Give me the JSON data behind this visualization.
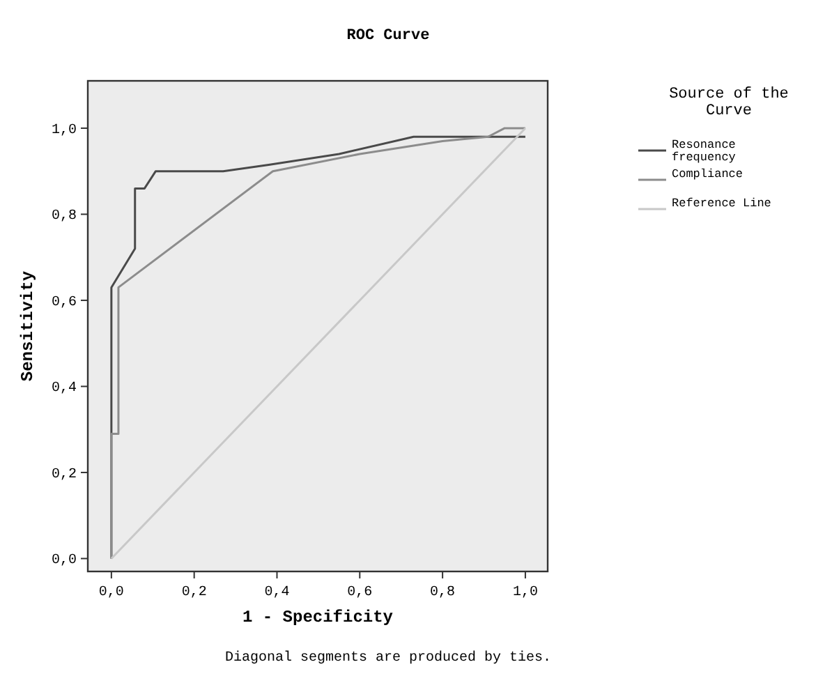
{
  "chart_data": {
    "type": "line",
    "title": "ROC Curve",
    "xlabel": "1 - Specificity",
    "ylabel": "Sensitivity",
    "legend_title": "Source of the Curve",
    "legend": "right",
    "grid": false,
    "marker": "none",
    "annotations": [
      "Diagonal segments are produced by ties."
    ],
    "xlim": [
      -0.057,
      1.054
    ],
    "ylim": [
      -0.03,
      1.11
    ],
    "xticks": [
      {
        "value": 0,
        "label": "0,0"
      },
      {
        "value": 0.2,
        "label": "0,2"
      },
      {
        "value": 0.4,
        "label": "0,4"
      },
      {
        "value": 0.6,
        "label": "0,6"
      },
      {
        "value": 0.8,
        "label": "0,8"
      },
      {
        "value": 1,
        "label": "1,0"
      }
    ],
    "yticks": [
      {
        "value": 0,
        "label": "0,0"
      },
      {
        "value": 0.2,
        "label": "0,2"
      },
      {
        "value": 0.4,
        "label": "0,4"
      },
      {
        "value": 0.6,
        "label": "0,6"
      },
      {
        "value": 0.8,
        "label": "0,8"
      },
      {
        "value": 1,
        "label": "1,0"
      }
    ],
    "series": [
      {
        "name": "Resonance frequency",
        "color": "#4a4a4a",
        "x": [
          0,
          0,
          0.057,
          0.057,
          0.08,
          0.107,
          0.27,
          0.38,
          0.55,
          0.73,
          0.86,
          1
        ],
        "values": [
          0,
          0.63,
          0.72,
          0.86,
          0.86,
          0.9,
          0.9,
          0.915,
          0.94,
          0.98,
          0.98,
          0.98
        ]
      },
      {
        "name": "Compliance",
        "color": "#8c8c8c",
        "x": [
          0,
          0,
          0.017,
          0.017,
          0.39,
          0.6,
          0.8,
          0.91,
          0.95,
          1
        ],
        "values": [
          0,
          0.29,
          0.29,
          0.63,
          0.9,
          0.94,
          0.97,
          0.98,
          1,
          1
        ]
      },
      {
        "name": "Reference Line",
        "color": "#c8c8c8",
        "x": [
          0,
          1
        ],
        "values": [
          0,
          1
        ]
      }
    ]
  }
}
